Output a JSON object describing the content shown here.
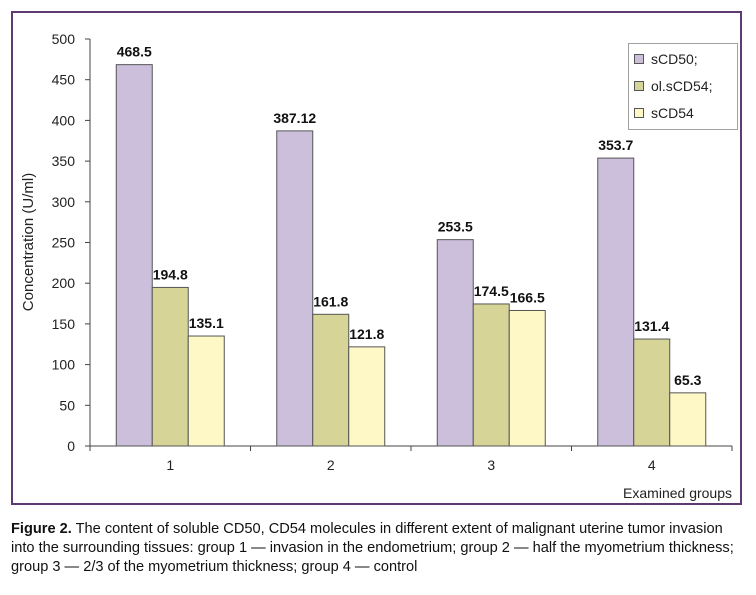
{
  "chart_data": {
    "type": "bar",
    "categories": [
      "1",
      "2",
      "3",
      "4"
    ],
    "series": [
      {
        "name": "sCD50;",
        "values": [
          468.5,
          387.12,
          253.5,
          353.7
        ],
        "labels": [
          "468.5",
          "387.12",
          "253.5",
          "353.7"
        ],
        "color": "#cbbfdc"
      },
      {
        "name": "ol.sCD54;",
        "values": [
          194.8,
          161.8,
          174.5,
          131.4
        ],
        "labels": [
          "194.8",
          "161.8",
          "174.5",
          "131.4"
        ],
        "color": "#d6d597"
      },
      {
        "name": "sCD54",
        "values": [
          135.1,
          121.8,
          166.5,
          65.3
        ],
        "labels": [
          "135.1",
          "121.8",
          "166.5",
          "65.3"
        ],
        "color": "#fdf8c6"
      }
    ],
    "ylabel": "Concentration (U/ml)",
    "xlabel": "Examined groups",
    "ylim": [
      0,
      500
    ],
    "yticks": [
      0,
      50,
      100,
      150,
      200,
      250,
      300,
      350,
      400,
      450,
      500
    ],
    "grid": false,
    "legend_position": "top-right",
    "frame_color": "#5e3a72"
  },
  "caption": {
    "label": "Figure 2.",
    "text": " The content of soluble CD50, CD54 molecules in different extent of malignant uterine tumor invasion into the surrounding tissues: group 1 — invasion in the endometrium; group 2 — half the myometrium thickness; group 3 — 2/3 of the myometrium thickness; group 4 — control"
  }
}
